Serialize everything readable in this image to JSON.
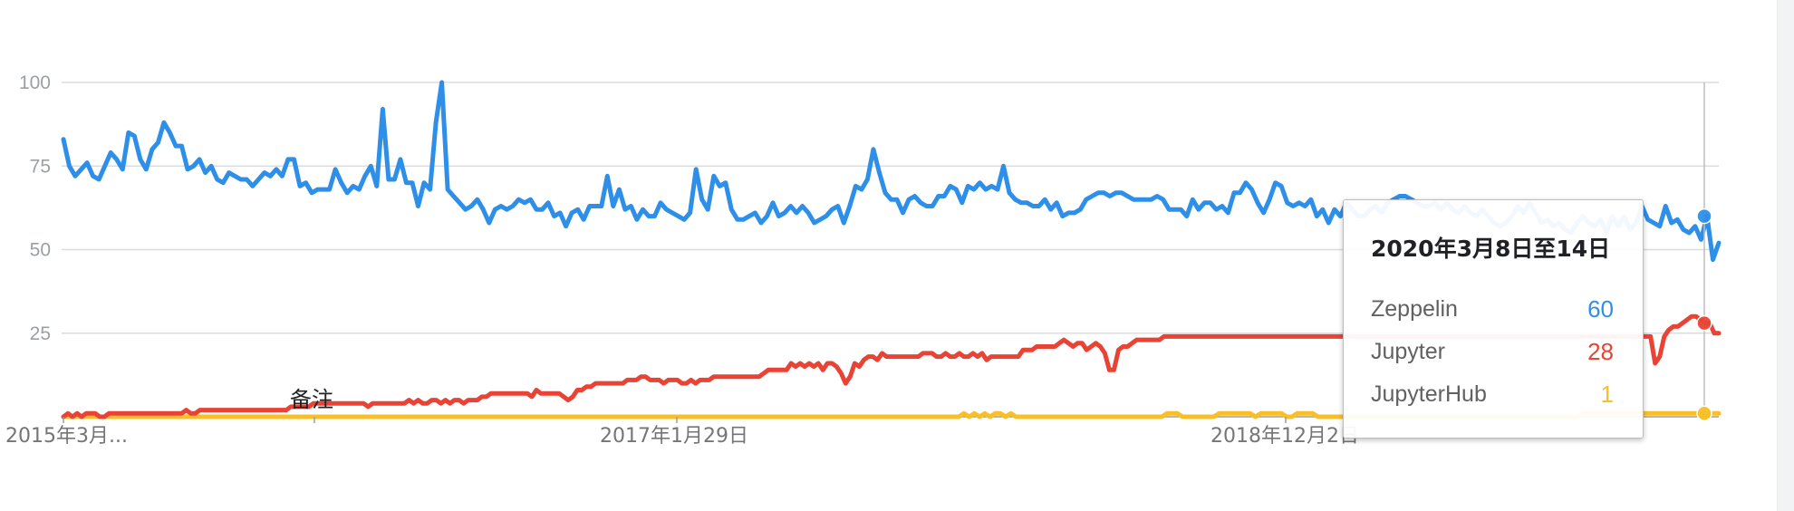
{
  "chart_data": {
    "type": "line",
    "ylim": [
      0,
      100
    ],
    "yticks": [
      "100",
      "75",
      "50",
      "25"
    ],
    "x_tick_labels": [
      "2015年3月...",
      "2017年1月29日",
      "2018年12月2日"
    ],
    "annotation_label": "备注",
    "grid": true,
    "series": [
      {
        "name": "Zeppelin",
        "color": "#2e8fe8",
        "values": [
          83,
          75,
          72,
          74,
          76,
          72,
          71,
          75,
          79,
          77,
          74,
          85,
          84,
          77,
          74,
          80,
          82,
          88,
          85,
          81,
          81,
          74,
          75,
          77,
          73,
          75,
          71,
          70,
          73,
          72,
          71,
          71,
          69,
          71,
          73,
          72,
          74,
          72,
          77,
          77,
          69,
          70,
          67,
          68,
          68,
          68,
          74,
          70,
          67,
          69,
          68,
          72,
          75,
          69,
          92,
          71,
          71,
          77,
          70,
          70,
          63,
          70,
          68,
          88,
          100,
          68,
          66,
          64,
          62,
          63,
          65,
          62,
          58,
          62,
          63,
          62,
          63,
          65,
          64,
          65,
          62,
          62,
          64,
          60,
          61,
          57,
          61,
          62,
          59,
          63,
          63,
          63,
          72,
          63,
          68,
          62,
          63,
          59,
          62,
          60,
          60,
          64,
          62,
          61,
          60,
          59,
          61,
          74,
          65,
          62,
          72,
          69,
          70,
          62,
          59,
          59,
          60,
          61,
          58,
          60,
          64,
          60,
          61,
          63,
          61,
          63,
          61,
          58,
          59,
          60,
          62,
          63,
          58,
          63,
          69,
          68,
          71,
          80,
          73,
          67,
          65,
          65,
          61,
          65,
          66,
          64,
          63,
          63,
          66,
          66,
          69,
          68,
          64,
          69,
          68,
          70,
          68,
          69,
          68,
          75,
          67,
          65,
          64,
          64,
          63,
          63,
          65,
          62,
          64,
          60,
          61,
          61,
          62,
          65,
          66,
          67,
          67,
          66,
          67,
          67,
          66,
          65,
          65,
          65,
          65,
          66,
          65,
          62,
          62,
          62,
          60,
          65,
          62,
          64,
          64,
          62,
          63,
          61,
          67,
          67,
          70,
          68,
          64,
          61,
          65,
          70,
          69,
          64,
          63,
          64,
          63,
          65,
          60,
          62,
          58,
          62,
          60,
          64,
          62,
          60,
          60,
          62,
          63,
          61,
          64,
          65,
          66,
          66,
          65,
          64,
          63,
          63,
          64,
          62,
          64,
          62,
          61,
          63,
          61,
          60,
          62,
          60,
          58,
          57,
          58,
          60,
          63,
          61,
          64,
          61,
          58,
          59,
          57,
          58,
          56,
          55,
          58,
          60,
          58,
          57,
          59,
          55,
          60,
          57,
          60,
          56,
          58,
          63,
          59,
          58,
          57,
          63,
          58,
          59,
          56,
          55,
          57,
          53,
          60,
          47,
          52
        ]
      },
      {
        "name": "Jupyter",
        "color": "#e94335",
        "values": [
          0,
          1,
          0,
          1,
          0,
          1,
          1,
          1,
          0,
          0,
          1,
          1,
          1,
          1,
          1,
          1,
          1,
          1,
          1,
          1,
          1,
          1,
          1,
          1,
          1,
          1,
          1,
          2,
          1,
          1,
          2,
          2,
          2,
          2,
          2,
          2,
          2,
          2,
          2,
          2,
          2,
          2,
          2,
          2,
          2,
          2,
          2,
          2,
          2,
          2,
          3,
          3,
          3,
          3,
          3,
          4,
          4,
          4,
          4,
          4,
          4,
          4,
          4,
          4,
          4,
          4,
          4,
          3,
          4,
          4,
          4,
          4,
          4,
          4,
          4,
          4,
          5,
          4,
          5,
          4,
          4,
          5,
          5,
          4,
          5,
          4,
          5,
          5,
          4,
          5,
          5,
          5,
          6,
          6,
          7,
          7,
          7,
          7,
          7,
          7,
          7,
          7,
          7,
          6,
          8,
          7,
          7,
          7,
          7,
          7,
          6,
          5,
          6,
          8,
          8,
          9,
          9,
          10,
          10,
          10,
          10,
          10,
          10,
          10,
          11,
          11,
          11,
          12,
          12,
          11,
          11,
          11,
          10,
          11,
          11,
          11,
          10,
          10,
          11,
          10,
          11,
          11,
          11,
          12,
          12,
          12,
          12,
          12,
          12,
          12,
          12,
          12,
          12,
          12,
          13,
          14,
          14,
          14,
          14,
          14,
          16,
          15,
          16,
          15,
          16,
          15,
          16,
          14,
          16,
          16,
          15,
          13,
          10,
          12,
          16,
          15,
          17,
          18,
          18,
          17,
          19,
          18,
          18,
          18,
          18,
          18,
          18,
          18,
          18,
          19,
          19,
          19,
          18,
          18,
          19,
          18,
          18,
          19,
          18,
          18,
          19,
          18,
          19,
          17,
          18,
          18,
          18,
          18,
          18,
          18,
          18,
          20,
          20,
          20,
          21,
          21,
          21,
          21,
          21,
          22,
          23,
          22,
          21,
          22,
          22,
          20,
          21,
          22,
          21,
          19,
          14,
          14,
          20,
          21,
          21,
          22,
          23,
          23,
          23,
          23,
          23,
          23,
          24,
          24,
          24,
          24,
          24,
          24,
          24,
          24,
          24,
          24,
          24,
          24,
          24,
          24,
          24,
          24,
          24,
          24,
          24,
          24,
          24,
          24,
          24,
          24,
          24,
          24,
          24,
          24,
          24,
          24,
          24,
          24,
          24,
          24,
          24,
          24,
          24,
          24,
          24,
          24,
          24,
          24,
          24,
          24,
          24,
          24,
          24,
          24,
          24,
          24,
          24,
          24,
          24,
          24,
          24,
          24,
          24,
          24,
          24,
          24,
          24,
          24,
          24,
          24,
          24,
          24,
          24,
          24,
          24,
          24,
          24,
          24,
          24,
          24,
          24,
          24,
          24,
          24,
          24,
          24,
          24,
          24,
          24,
          24,
          24,
          24,
          24,
          24,
          24,
          24,
          24,
          24,
          24,
          24,
          24,
          24,
          24,
          24,
          24,
          24,
          24,
          24,
          24,
          24,
          24,
          24,
          24,
          24,
          16,
          18,
          24,
          26,
          27,
          27,
          28,
          29,
          30,
          30,
          29,
          28,
          28,
          25,
          25
        ]
      },
      {
        "name": "JupyterHub",
        "color": "#f9bf26",
        "values": [
          0,
          0,
          0,
          0,
          0,
          0,
          0,
          0,
          0,
          0,
          0,
          0,
          0,
          0,
          0,
          0,
          0,
          0,
          0,
          0,
          0,
          0,
          0,
          0,
          0,
          0,
          0,
          0,
          0,
          0,
          0,
          0,
          0,
          0,
          0,
          0,
          0,
          0,
          0,
          0,
          0,
          0,
          0,
          0,
          0,
          0,
          0,
          0,
          0,
          0,
          0,
          0,
          0,
          0,
          0,
          0,
          0,
          0,
          0,
          0,
          0,
          0,
          0,
          0,
          0,
          0,
          0,
          0,
          0,
          0,
          0,
          0,
          0,
          0,
          0,
          0,
          0,
          0,
          0,
          0,
          0,
          0,
          0,
          0,
          0,
          0,
          0,
          0,
          0,
          0,
          0,
          0,
          0,
          0,
          0,
          0,
          0,
          0,
          0,
          0,
          0,
          0,
          0,
          0,
          0,
          0,
          0,
          0,
          0,
          0,
          0,
          0,
          0,
          0,
          0,
          0,
          0,
          0,
          0,
          0,
          0,
          0,
          0,
          0,
          0,
          0,
          0,
          0,
          0,
          0,
          0,
          0,
          0,
          0,
          0,
          0,
          0,
          0,
          0,
          0,
          0,
          0,
          0,
          0,
          0,
          0,
          0,
          0,
          0,
          0,
          0,
          0,
          0,
          0,
          0,
          0,
          0,
          0,
          0,
          0,
          0,
          0,
          0,
          0,
          0,
          0,
          0,
          0,
          0,
          0,
          0,
          0,
          0,
          1,
          0,
          1,
          0,
          1,
          0,
          1,
          1,
          0,
          1,
          0,
          0,
          0,
          0,
          0,
          0,
          0,
          0,
          0,
          0,
          0,
          0,
          0,
          0,
          0,
          0,
          0,
          0,
          0,
          0,
          0,
          0,
          0,
          0,
          0,
          0,
          0,
          0,
          0,
          1,
          1,
          1,
          0,
          0,
          0,
          0,
          0,
          0,
          0,
          1,
          1,
          1,
          1,
          1,
          1,
          1,
          0,
          1,
          1,
          1,
          1,
          1,
          0,
          0,
          1,
          1,
          1,
          1,
          0,
          0,
          0,
          0,
          0,
          0,
          0,
          0,
          0,
          0,
          0,
          0,
          0,
          0,
          0,
          0,
          0,
          0,
          0,
          0,
          0,
          0,
          0,
          0,
          0,
          0,
          0,
          0,
          0,
          0,
          0,
          0,
          0,
          0,
          0,
          0,
          0,
          0,
          0,
          0,
          0,
          0,
          0,
          0,
          0,
          0,
          0,
          0,
          0,
          0,
          0,
          1,
          1,
          1,
          1,
          1,
          1,
          1,
          1,
          1,
          1,
          1,
          1,
          1,
          1,
          1,
          1,
          1,
          1,
          1,
          1,
          1,
          1,
          1,
          1,
          1,
          1,
          1
        ]
      }
    ]
  },
  "tooltip": {
    "date": "2020年3月8日至14日",
    "rows": [
      {
        "name": "Zeppelin",
        "value": "60",
        "color": "#2e8fe8"
      },
      {
        "name": "Jupyter",
        "value": "28",
        "color": "#e94335"
      },
      {
        "name": "JupyterHub",
        "value": "1",
        "color": "#f9bf26"
      }
    ]
  }
}
